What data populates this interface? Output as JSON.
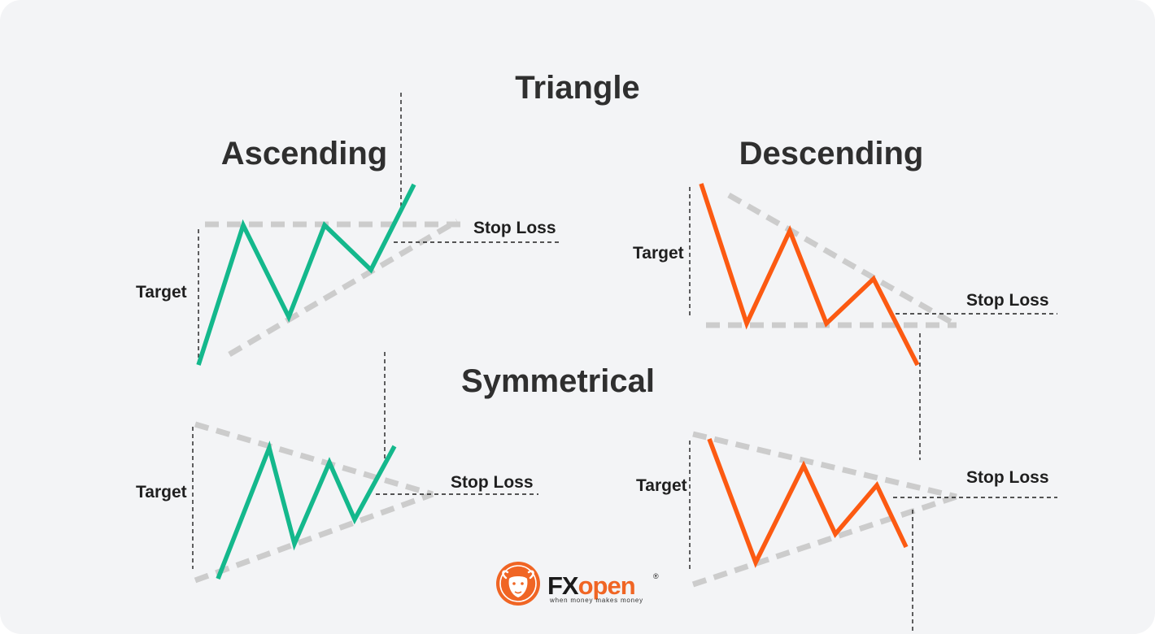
{
  "title": "Triangle",
  "colors": {
    "bullish": "#14b88c",
    "bearish": "#fc5a12",
    "guide": "#cccccc",
    "text": "#2f2f2f",
    "background": "#f3f4f6",
    "logo_orange": "#f06524"
  },
  "panels": {
    "ascending": {
      "heading": "Ascending",
      "target_label": "Target",
      "stop_loss_label": "Stop Loss"
    },
    "descending": {
      "heading": "Descending",
      "target_label": "Target",
      "stop_loss_label": "Stop Loss"
    },
    "symmetrical": {
      "heading": "Symmetrical",
      "bullish_target_label": "Target",
      "bullish_stop_loss_label": "Stop Loss",
      "bearish_target_label": "Target",
      "bearish_stop_loss_label": "Stop Loss"
    }
  },
  "logo": {
    "brand_fx": "FX",
    "brand_open": "open",
    "registered": "®",
    "tagline": "when money makes money",
    "icon": "fxopen-bull-icon"
  }
}
